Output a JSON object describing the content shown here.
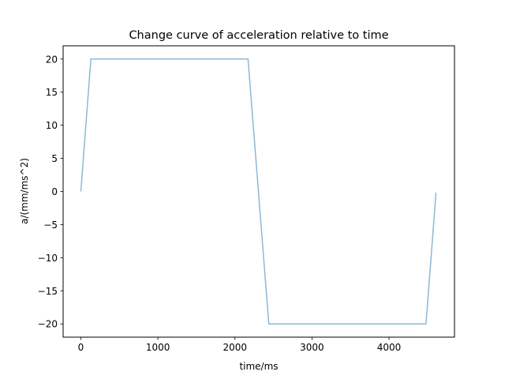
{
  "chart_data": {
    "type": "line",
    "title": "Change curve of acceleration relative to time",
    "xlabel": "time/ms",
    "ylabel": "a/(mm/ms^2)",
    "xlim": [
      -230,
      4850
    ],
    "ylim": [
      -22,
      22
    ],
    "xticks": [
      0,
      1000,
      2000,
      3000,
      4000
    ],
    "yticks": [
      -20,
      -15,
      -10,
      -5,
      0,
      5,
      10,
      15,
      20
    ],
    "xtick_labels": [
      "0",
      "1000",
      "2000",
      "3000",
      "4000"
    ],
    "ytick_labels": [
      "−20",
      "−15",
      "−10",
      "−5",
      "0",
      "5",
      "10",
      "15",
      "20"
    ],
    "grid": false,
    "series": [
      {
        "color": "#8cb9d5",
        "x": [
          0,
          130,
          2170,
          2440,
          4480,
          4610
        ],
        "y": [
          0,
          20,
          20,
          -20,
          -20,
          -0.2
        ]
      }
    ]
  }
}
